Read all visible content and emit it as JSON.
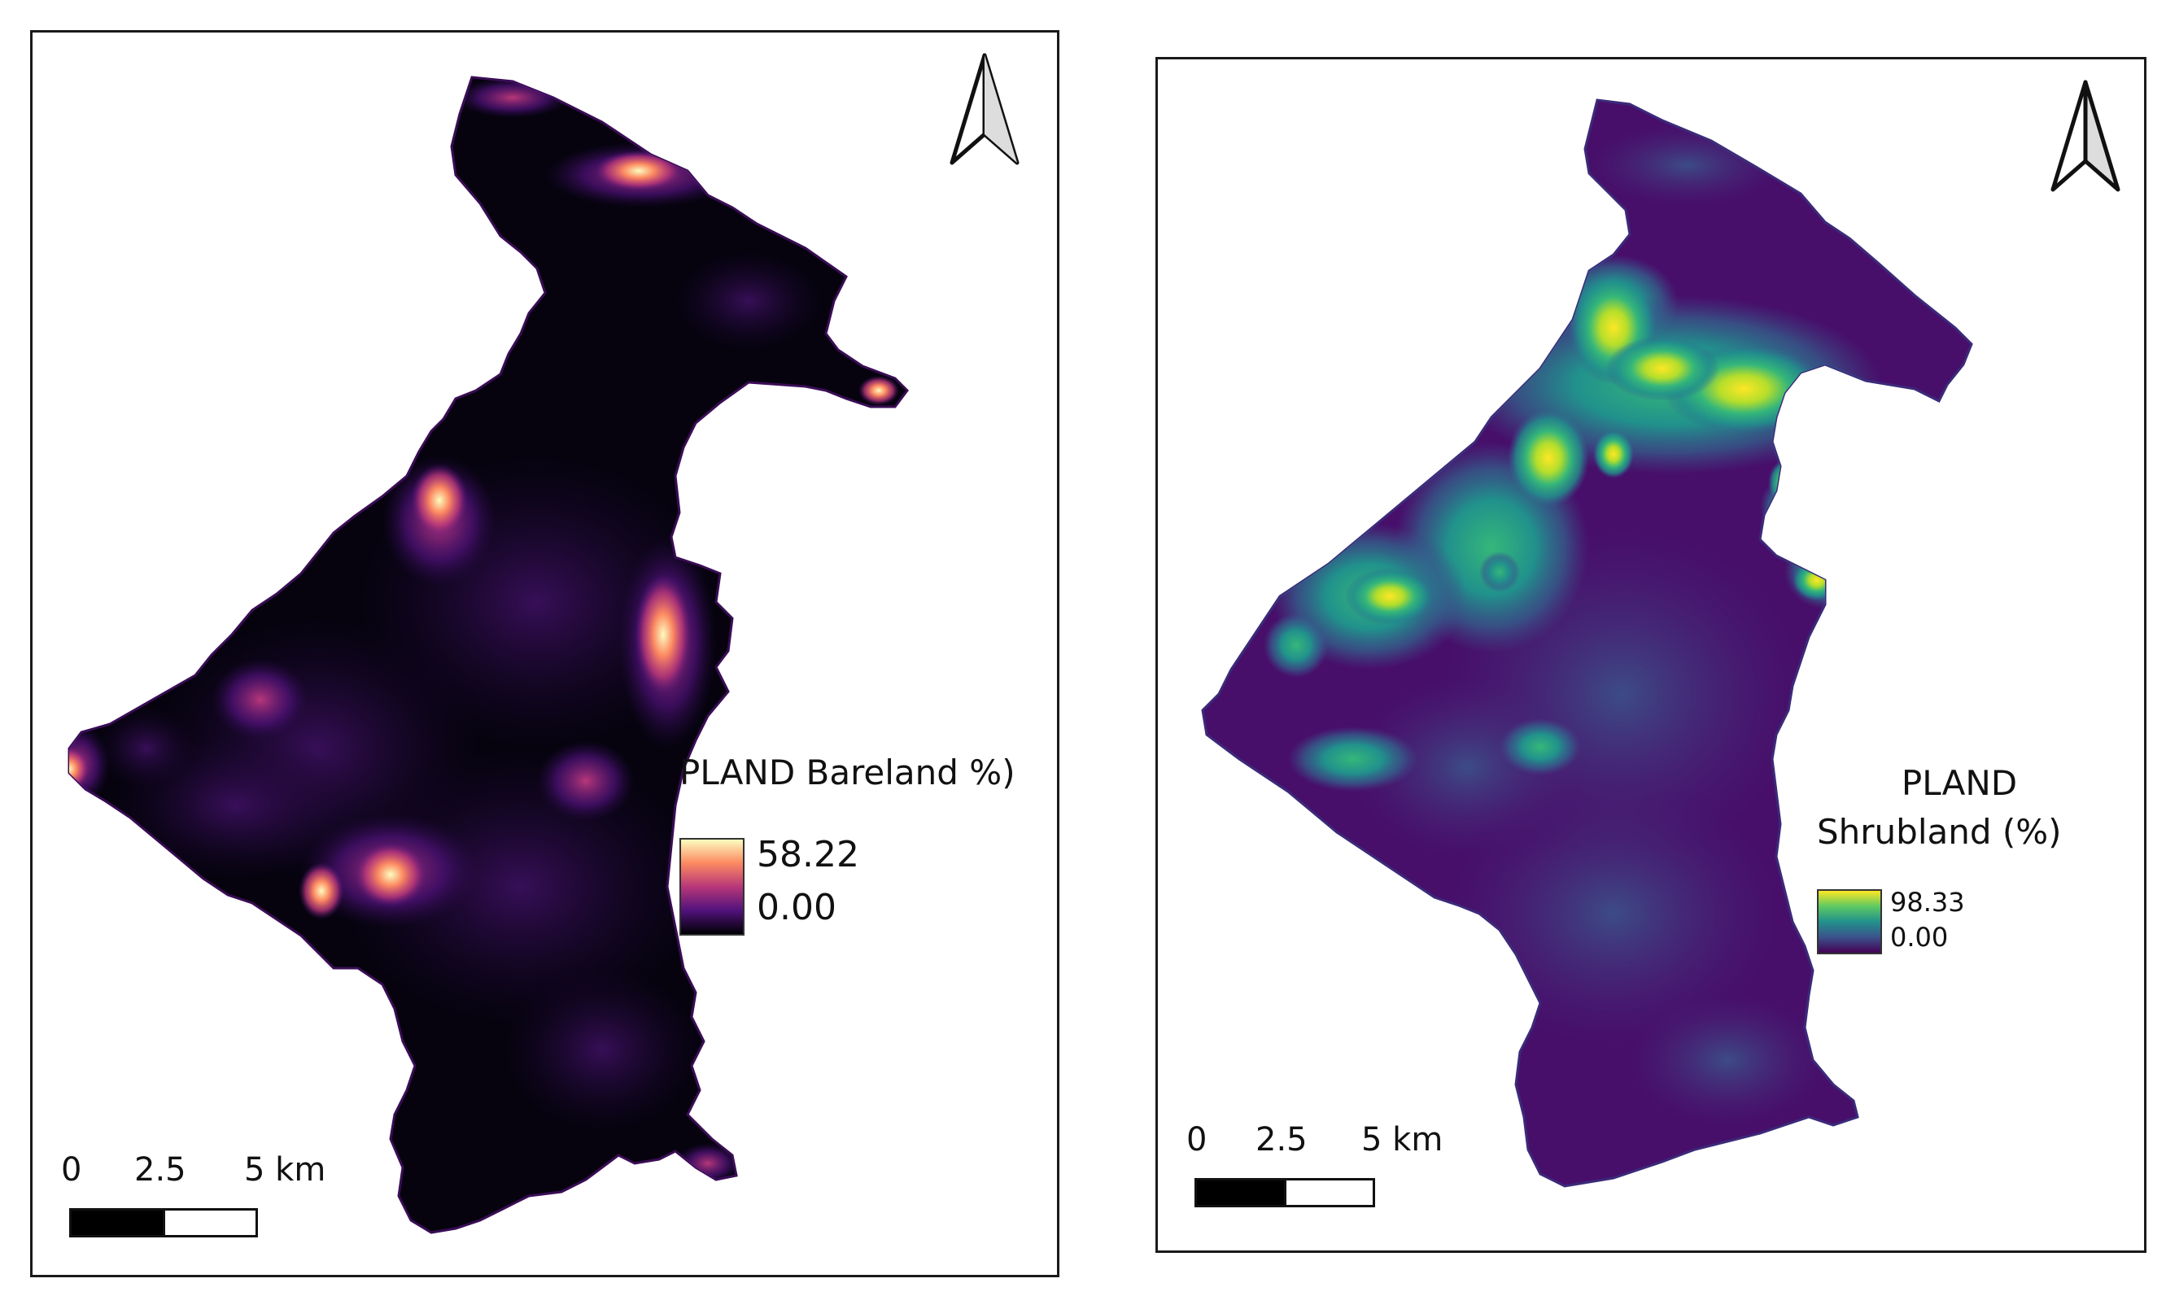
{
  "maps": [
    {
      "legend": {
        "title": "PLAND Bareland %)",
        "max": "58.22",
        "min": "0.00",
        "ramp": [
          "#fcfdbf",
          "#fc8961",
          "#b73779",
          "#51127c",
          "#000004"
        ]
      },
      "scale": {
        "labels": [
          "0",
          "2.5",
          "5 km"
        ]
      },
      "colors": {
        "base": "#06030f"
      }
    },
    {
      "legend": {
        "title_line1": "PLAND",
        "title_line2": "Shrubland (%)",
        "max": "98.33",
        "min": "0.00",
        "ramp": [
          "#fde725",
          "#5ec962",
          "#21918c",
          "#3b528b",
          "#440154"
        ]
      },
      "scale": {
        "labels": [
          "0",
          "2.5",
          "5 km"
        ]
      },
      "colors": {
        "base": "#470f6a"
      }
    }
  ]
}
